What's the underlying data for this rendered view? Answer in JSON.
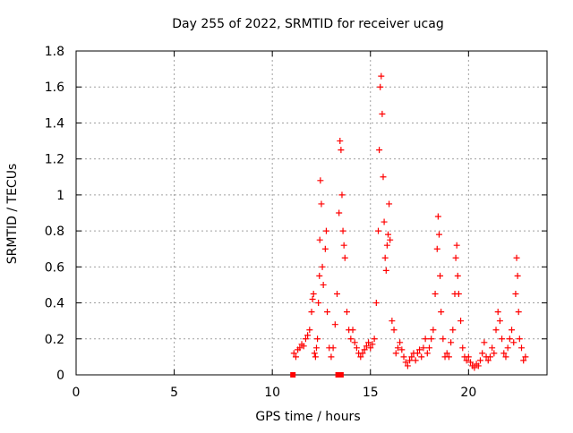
{
  "chart_data": {
    "type": "scatter",
    "title": "Day 255 of 2022, SRMTID for receiver ucag",
    "xlabel": "GPS time / hours",
    "ylabel": "SRMTID / TECUs",
    "xlim": [
      0,
      24
    ],
    "ylim": [
      0,
      1.8
    ],
    "xticks": [
      0,
      5,
      10,
      15,
      20
    ],
    "xtick_labels": [
      "0",
      "5",
      "10",
      "15",
      "20"
    ],
    "yticks": [
      0,
      0.2,
      0.4,
      0.6,
      0.8,
      1,
      1.2,
      1.4,
      1.6,
      1.8
    ],
    "ytick_labels": [
      "0",
      "0.2",
      "0.4",
      "0.6",
      "0.8",
      "1",
      "1.2",
      "1.4",
      "1.6",
      "1.8"
    ],
    "grid": true,
    "marker": "+",
    "color": "#ff0000",
    "series": [
      {
        "name": "SRMTID",
        "points": [
          [
            11.1,
            0.12
          ],
          [
            11.2,
            0.1
          ],
          [
            11.3,
            0.14
          ],
          [
            11.4,
            0.15
          ],
          [
            11.5,
            0.17
          ],
          [
            11.6,
            0.16
          ],
          [
            11.7,
            0.2
          ],
          [
            11.8,
            0.22
          ],
          [
            11.9,
            0.25
          ],
          [
            12.0,
            0.35
          ],
          [
            12.05,
            0.42
          ],
          [
            12.1,
            0.45
          ],
          [
            12.15,
            0.12
          ],
          [
            12.2,
            0.1
          ],
          [
            12.25,
            0.15
          ],
          [
            12.3,
            0.2
          ],
          [
            12.35,
            0.4
          ],
          [
            12.4,
            0.55
          ],
          [
            12.42,
            0.75
          ],
          [
            12.45,
            1.08
          ],
          [
            12.5,
            0.95
          ],
          [
            12.55,
            0.6
          ],
          [
            12.6,
            0.5
          ],
          [
            12.7,
            0.7
          ],
          [
            12.75,
            0.8
          ],
          [
            12.8,
            0.35
          ],
          [
            12.9,
            0.15
          ],
          [
            13.0,
            0.1
          ],
          [
            13.1,
            0.15
          ],
          [
            13.2,
            0.28
          ],
          [
            13.3,
            0.45
          ],
          [
            13.4,
            0.9
          ],
          [
            13.45,
            1.3
          ],
          [
            13.5,
            1.25
          ],
          [
            13.55,
            1.0
          ],
          [
            13.6,
            0.8
          ],
          [
            13.65,
            0.72
          ],
          [
            13.7,
            0.65
          ],
          [
            13.8,
            0.35
          ],
          [
            13.9,
            0.25
          ],
          [
            14.0,
            0.2
          ],
          [
            14.1,
            0.25
          ],
          [
            14.2,
            0.18
          ],
          [
            14.3,
            0.15
          ],
          [
            14.4,
            0.12
          ],
          [
            14.5,
            0.1
          ],
          [
            14.6,
            0.12
          ],
          [
            14.7,
            0.14
          ],
          [
            14.8,
            0.16
          ],
          [
            14.9,
            0.18
          ],
          [
            15.0,
            0.15
          ],
          [
            15.1,
            0.17
          ],
          [
            15.2,
            0.2
          ],
          [
            15.3,
            0.4
          ],
          [
            15.4,
            0.8
          ],
          [
            15.45,
            1.25
          ],
          [
            15.5,
            1.6
          ],
          [
            15.55,
            1.66
          ],
          [
            15.6,
            1.45
          ],
          [
            15.65,
            1.1
          ],
          [
            15.7,
            0.85
          ],
          [
            15.75,
            0.65
          ],
          [
            15.8,
            0.58
          ],
          [
            15.85,
            0.72
          ],
          [
            15.9,
            0.78
          ],
          [
            15.95,
            0.95
          ],
          [
            16.0,
            0.75
          ],
          [
            16.1,
            0.3
          ],
          [
            16.2,
            0.25
          ],
          [
            16.3,
            0.12
          ],
          [
            16.4,
            0.15
          ],
          [
            16.5,
            0.18
          ],
          [
            16.6,
            0.14
          ],
          [
            16.7,
            0.1
          ],
          [
            16.8,
            0.07
          ],
          [
            16.9,
            0.05
          ],
          [
            17.0,
            0.08
          ],
          [
            17.1,
            0.1
          ],
          [
            17.2,
            0.12
          ],
          [
            17.3,
            0.08
          ],
          [
            17.4,
            0.12
          ],
          [
            17.5,
            0.14
          ],
          [
            17.6,
            0.1
          ],
          [
            17.7,
            0.15
          ],
          [
            17.8,
            0.2
          ],
          [
            17.9,
            0.12
          ],
          [
            18.0,
            0.15
          ],
          [
            18.1,
            0.2
          ],
          [
            18.2,
            0.25
          ],
          [
            18.3,
            0.45
          ],
          [
            18.4,
            0.7
          ],
          [
            18.45,
            0.88
          ],
          [
            18.5,
            0.78
          ],
          [
            18.55,
            0.55
          ],
          [
            18.6,
            0.35
          ],
          [
            18.7,
            0.2
          ],
          [
            18.8,
            0.1
          ],
          [
            18.9,
            0.12
          ],
          [
            19.0,
            0.1
          ],
          [
            19.1,
            0.18
          ],
          [
            19.2,
            0.25
          ],
          [
            19.3,
            0.45
          ],
          [
            19.35,
            0.65
          ],
          [
            19.4,
            0.72
          ],
          [
            19.45,
            0.55
          ],
          [
            19.5,
            0.45
          ],
          [
            19.6,
            0.3
          ],
          [
            19.7,
            0.15
          ],
          [
            19.8,
            0.1
          ],
          [
            19.9,
            0.08
          ],
          [
            20.0,
            0.1
          ],
          [
            20.1,
            0.07
          ],
          [
            20.2,
            0.05
          ],
          [
            20.3,
            0.04
          ],
          [
            20.4,
            0.06
          ],
          [
            20.5,
            0.05
          ],
          [
            20.6,
            0.08
          ],
          [
            20.7,
            0.12
          ],
          [
            20.8,
            0.18
          ],
          [
            20.9,
            0.1
          ],
          [
            21.0,
            0.08
          ],
          [
            21.1,
            0.1
          ],
          [
            21.2,
            0.15
          ],
          [
            21.3,
            0.12
          ],
          [
            21.4,
            0.25
          ],
          [
            21.5,
            0.35
          ],
          [
            21.6,
            0.3
          ],
          [
            21.7,
            0.2
          ],
          [
            21.8,
            0.12
          ],
          [
            21.9,
            0.1
          ],
          [
            22.0,
            0.15
          ],
          [
            22.1,
            0.2
          ],
          [
            22.2,
            0.25
          ],
          [
            22.3,
            0.18
          ],
          [
            22.4,
            0.45
          ],
          [
            22.45,
            0.65
          ],
          [
            22.5,
            0.55
          ],
          [
            22.55,
            0.35
          ],
          [
            22.6,
            0.2
          ],
          [
            22.7,
            0.15
          ],
          [
            22.8,
            0.08
          ],
          [
            22.9,
            0.1
          ]
        ],
        "square_points": [
          [
            11.05,
            0
          ],
          [
            13.35,
            0
          ],
          [
            13.5,
            0
          ]
        ]
      }
    ]
  }
}
